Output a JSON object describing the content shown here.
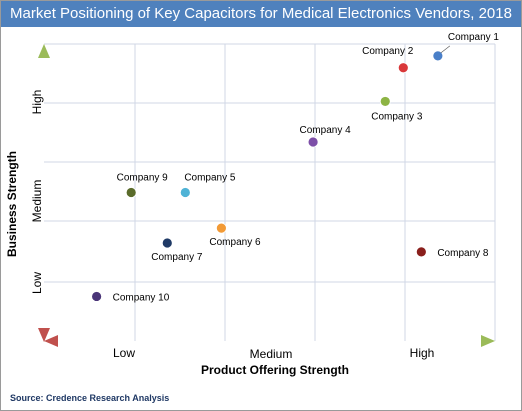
{
  "title": "Market Positioning of Key Capacitors for Medical Electronics Vendors, 2018",
  "source": "Source: Credence Research Analysis",
  "chart_data": {
    "type": "scatter",
    "title": "Market Positioning of Key Capacitors for Medical Electronics Vendors, 2018",
    "xlabel": "Product Offering Strength",
    "ylabel": "Business Strength",
    "x_tick_labels": [
      "Low",
      "Medium",
      "High"
    ],
    "y_tick_labels": [
      "Low",
      "Medium",
      "High"
    ],
    "xlim": [
      0,
      3
    ],
    "ylim": [
      0,
      3
    ],
    "grid": true,
    "points": [
      {
        "label": "Company 1",
        "x": 2.62,
        "y": 2.88,
        "color": "#4a7fc8",
        "label_pos": "upper-right"
      },
      {
        "label": "Company 2",
        "x": 2.39,
        "y": 2.76,
        "color": "#d9383a",
        "label_pos": "upper-left"
      },
      {
        "label": "Company 3",
        "x": 2.27,
        "y": 2.42,
        "color": "#8db444",
        "label_pos": "lower-right"
      },
      {
        "label": "Company 4",
        "x": 1.79,
        "y": 2.01,
        "color": "#7d4fa8",
        "label_pos": "upper"
      },
      {
        "label": "Company 5",
        "x": 0.94,
        "y": 1.5,
        "color": "#4fb3d6",
        "label_pos": "upper-right"
      },
      {
        "label": "Company 6",
        "x": 1.18,
        "y": 1.14,
        "color": "#f29a36",
        "label_pos": "lower-right"
      },
      {
        "label": "Company 7",
        "x": 0.82,
        "y": 0.99,
        "color": "#1f3a66",
        "label_pos": "lower-right"
      },
      {
        "label": "Company 8",
        "x": 2.51,
        "y": 0.9,
        "color": "#8a1f1c",
        "label_pos": "right"
      },
      {
        "label": "Company 9",
        "x": 0.58,
        "y": 1.5,
        "color": "#5a6b2a",
        "label_pos": "upper"
      },
      {
        "label": "Company 10",
        "x": 0.35,
        "y": 0.45,
        "color": "#4a3578",
        "label_pos": "right"
      }
    ]
  }
}
